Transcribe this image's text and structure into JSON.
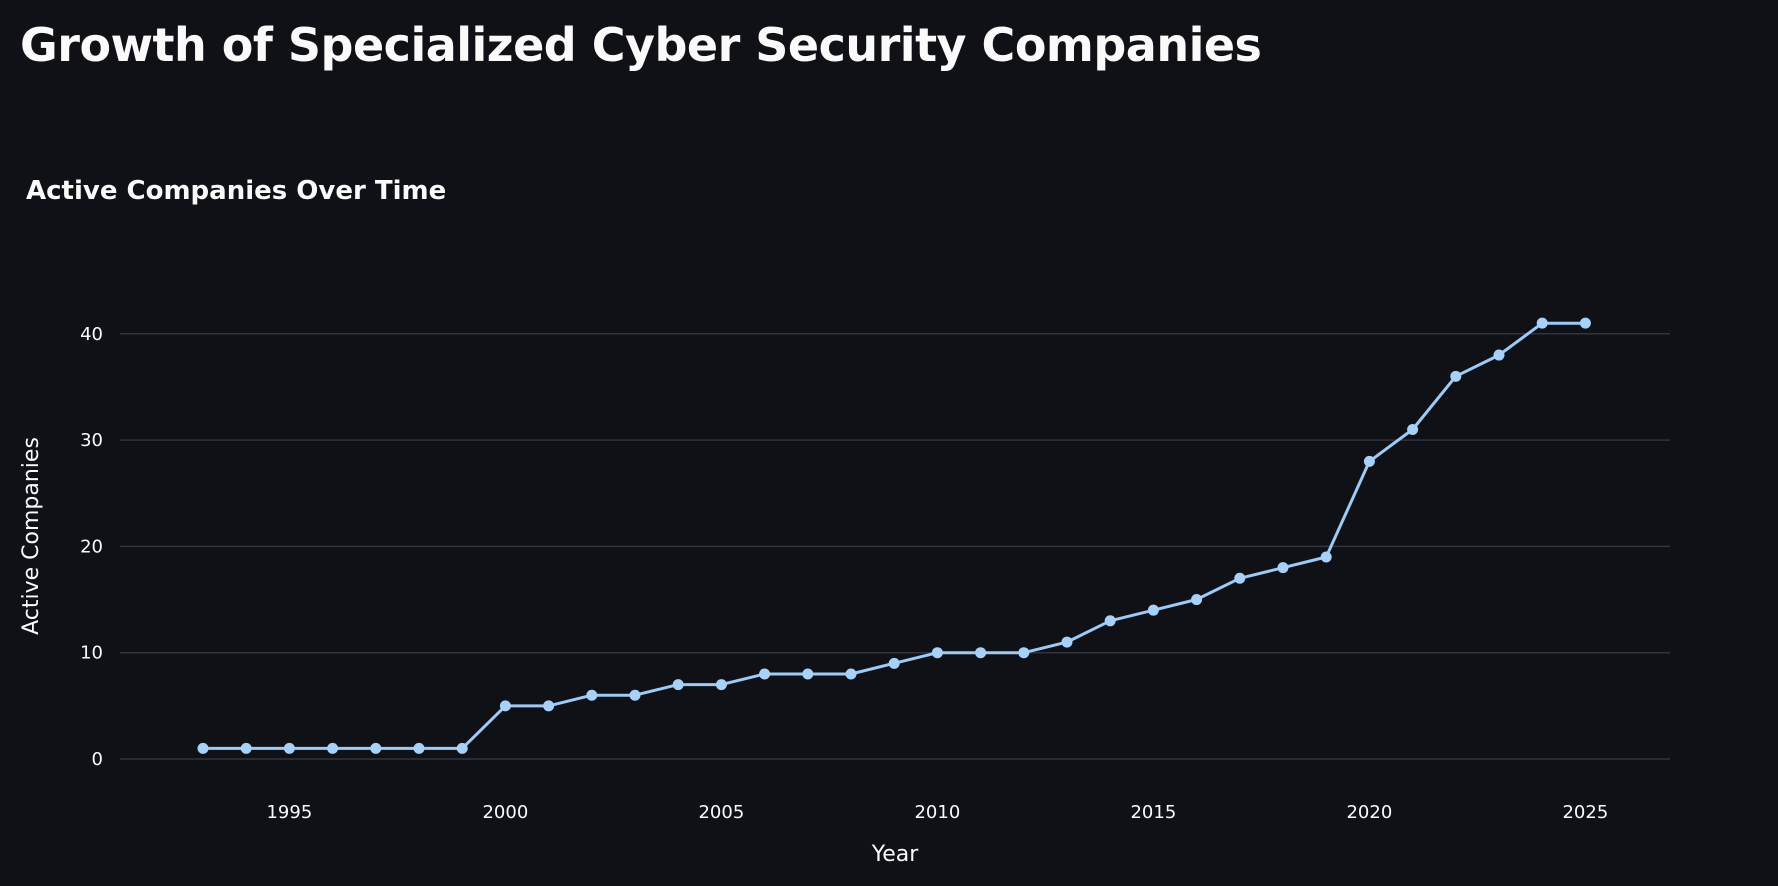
{
  "page": {
    "title": "Growth of Specialized Cyber Security Companies"
  },
  "colors": {
    "background": "#0f1117",
    "text": "#fafafa",
    "gridline": "#31333f",
    "series_line": "#9ecaf6",
    "series_point": "#a8d1fa"
  },
  "chart_data": {
    "type": "line",
    "title": "Active Companies Over Time",
    "xlabel": "Year",
    "ylabel": "Active Companies",
    "x": [
      1993,
      1994,
      1995,
      1996,
      1997,
      1998,
      1999,
      2000,
      2001,
      2002,
      2003,
      2004,
      2005,
      2006,
      2007,
      2008,
      2009,
      2010,
      2011,
      2012,
      2013,
      2014,
      2015,
      2016,
      2017,
      2018,
      2019,
      2020,
      2021,
      2022,
      2023,
      2024,
      2025
    ],
    "series": [
      {
        "values": [
          1,
          1,
          1,
          1,
          1,
          1,
          1,
          5,
          5,
          6,
          6,
          7,
          7,
          8,
          8,
          8,
          9,
          10,
          10,
          10,
          11,
          13,
          14,
          15,
          17,
          18,
          19,
          28,
          31,
          36,
          38,
          41,
          41
        ]
      }
    ],
    "xticks": [
      "1995",
      "2000",
      "2005",
      "2010",
      "2015",
      "2020",
      "2025"
    ],
    "yticks": [
      "0",
      "10",
      "20",
      "30",
      "40"
    ],
    "xlim": [
      1991,
      2027
    ],
    "ylim": [
      0,
      45
    ],
    "grid": "horizontal",
    "markers": true
  }
}
